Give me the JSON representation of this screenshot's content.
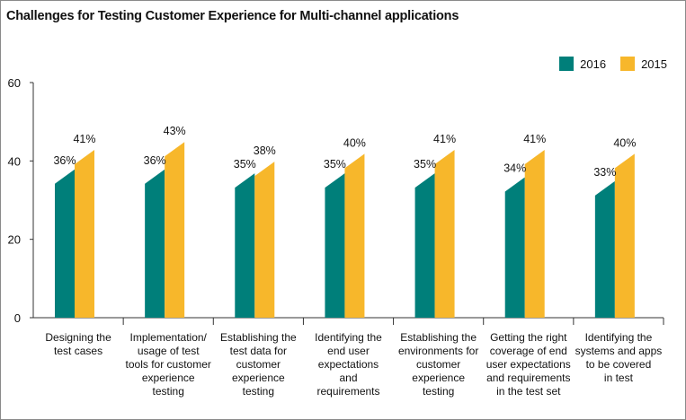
{
  "chart_data": {
    "type": "bar",
    "title": "Challenges for Testing Customer Experience for Multi-channel applications",
    "categories": [
      "Designing the test cases",
      "Implementation/ usage of test tools for customer experience testing",
      "Establishing the test data for customer experience testing",
      "Identifying the end user expectations and requirements",
      "Establishing the environments for customer experience testing",
      "Getting the right coverage of end user expectations and requirements in the test set",
      "Identifying the systems and apps to be covered in test"
    ],
    "category_lines": [
      [
        "Designing the",
        "test cases"
      ],
      [
        "Implementation/",
        "usage of test",
        "tools for customer",
        "experience",
        "testing"
      ],
      [
        "Establishing the",
        "test data for",
        "customer",
        "experience",
        "testing"
      ],
      [
        "Identifying the",
        "end user",
        "expectations",
        "and",
        "requirements"
      ],
      [
        "Establishing the",
        "environments for",
        "customer",
        "experience",
        "testing"
      ],
      [
        "Getting the right",
        "coverage of end",
        "user expectations",
        "and requirements",
        "in the test set"
      ],
      [
        "Identifying the",
        "systems and apps",
        "to be covered",
        "in test"
      ]
    ],
    "series": [
      {
        "name": "2016",
        "color": "#007f7a",
        "values": [
          36,
          36,
          35,
          35,
          35,
          34,
          33
        ],
        "labels": [
          "36%",
          "36%",
          "35%",
          "35%",
          "35%",
          "34%",
          "33%"
        ]
      },
      {
        "name": "2015",
        "color": "#f7b72b",
        "values": [
          41,
          43,
          38,
          40,
          41,
          41,
          40
        ],
        "labels": [
          "41%",
          "43%",
          "38%",
          "40%",
          "41%",
          "41%",
          "40%"
        ]
      }
    ],
    "ylim": [
      0,
      60
    ],
    "yticks": [
      0,
      20,
      40,
      60
    ],
    "xlabel": "",
    "ylabel": "",
    "grid": false,
    "legend_position": "top-right"
  }
}
